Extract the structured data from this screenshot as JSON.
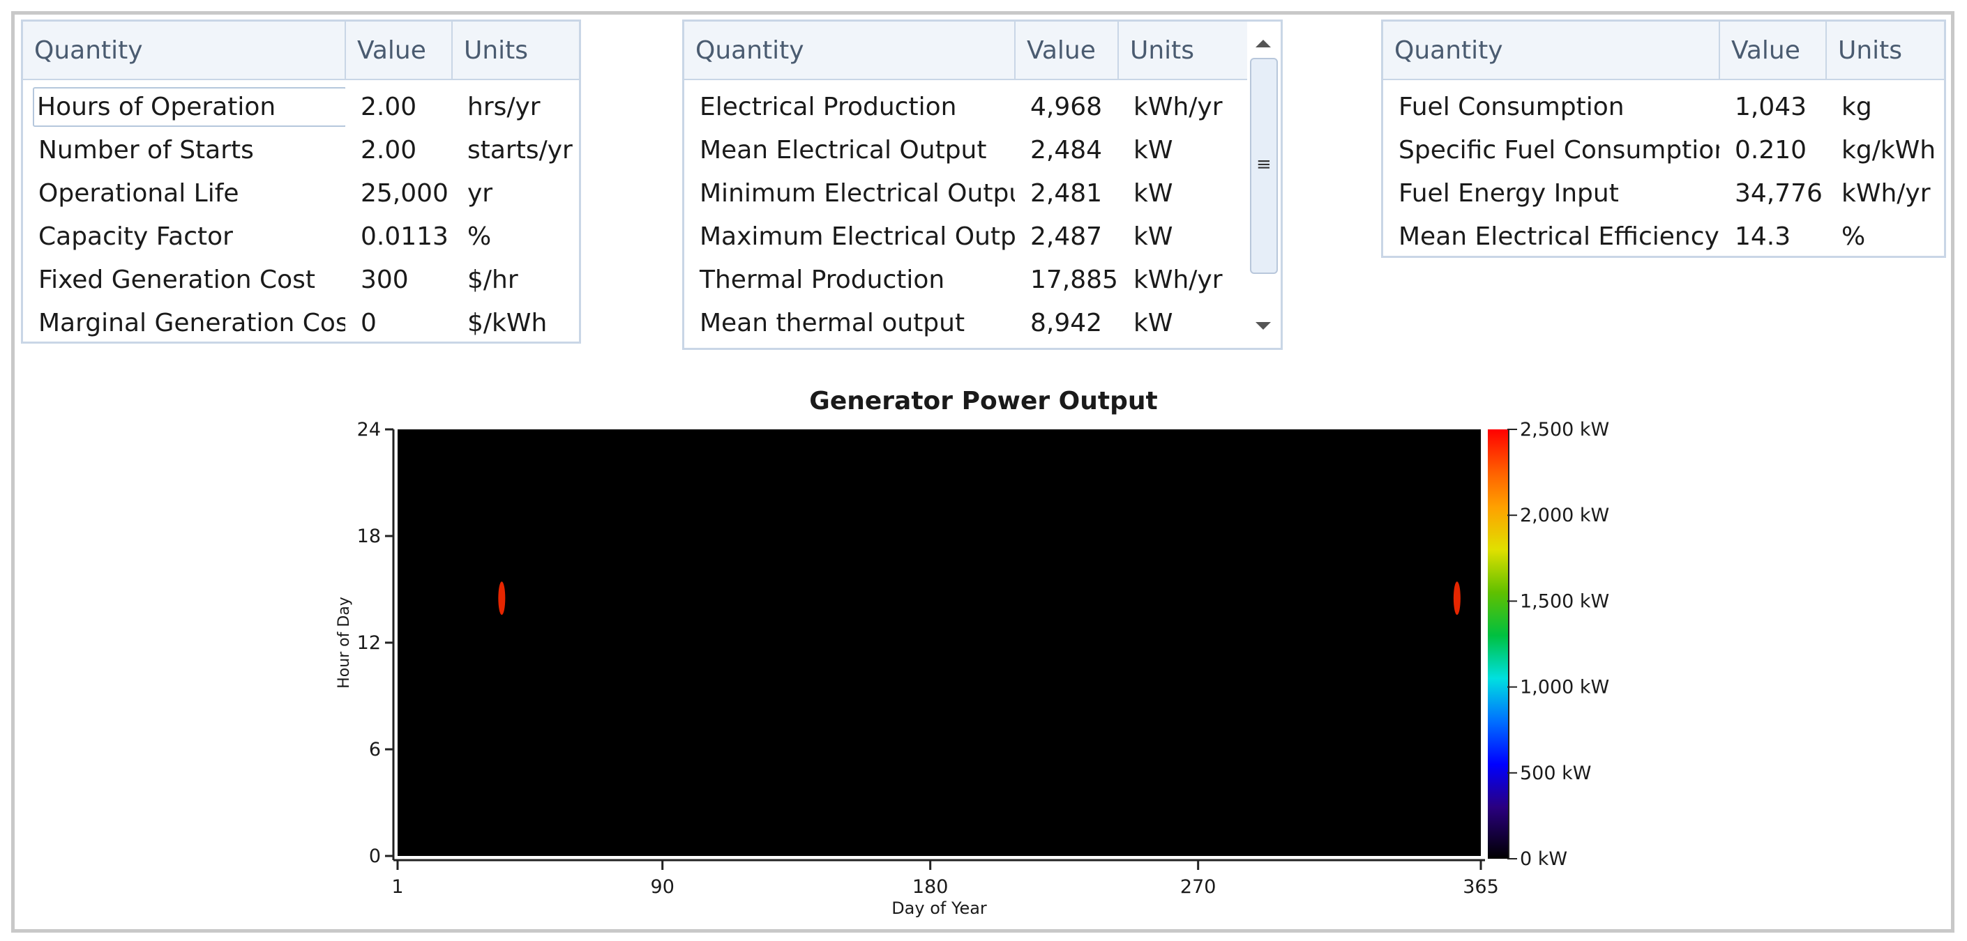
{
  "table_left": {
    "headers": [
      "Quantity",
      "Value",
      "Units"
    ],
    "rows": [
      [
        "Hours of Operation",
        "2.00",
        "hrs/yr"
      ],
      [
        "Number of Starts",
        "2.00",
        "starts/yr"
      ],
      [
        "Operational Life",
        "25,000",
        "yr"
      ],
      [
        "Capacity Factor",
        "0.0113",
        "%"
      ],
      [
        "Fixed Generation Cost",
        "300",
        "$/hr"
      ],
      [
        "Marginal Generation Cost",
        "0",
        "$/kWh"
      ]
    ]
  },
  "table_middle": {
    "headers": [
      "Quantity",
      "Value",
      "Units"
    ],
    "rows": [
      [
        "Electrical Production",
        "4,968",
        "kWh/yr"
      ],
      [
        "Mean Electrical Output",
        "2,484",
        "kW"
      ],
      [
        "Minimum Electrical Output",
        "2,481",
        "kW"
      ],
      [
        "Maximum Electrical Output",
        "2,487",
        "kW"
      ],
      [
        "Thermal Production",
        "17,885",
        "kWh/yr"
      ],
      [
        "Mean thermal output",
        "8,942",
        "kW"
      ]
    ],
    "scrollbar_grip": "≡"
  },
  "table_right": {
    "headers": [
      "Quantity",
      "Value",
      "Units"
    ],
    "rows": [
      [
        "Fuel Consumption",
        "1,043",
        "kg"
      ],
      [
        "Specific Fuel Consumption",
        "0.210",
        "kg/kWh"
      ],
      [
        "Fuel Energy Input",
        "34,776",
        "kWh/yr"
      ],
      [
        "Mean Electrical Efficiency",
        "14.3",
        "%"
      ]
    ]
  },
  "chart_data": {
    "type": "heatmap",
    "title": "Generator Power Output",
    "xlabel": "Day of Year",
    "ylabel": "Hour of Day",
    "x_ticks": [
      "1",
      "90",
      "180",
      "270",
      "365"
    ],
    "y_ticks": [
      "0",
      "6",
      "12",
      "18",
      "24"
    ],
    "xlim": [
      1,
      365
    ],
    "ylim": [
      0,
      24
    ],
    "colorbar_ticks": [
      "0 kW",
      "500 kW",
      "1,000 kW",
      "1,500 kW",
      "2,000 kW",
      "2,500 kW"
    ],
    "colorbar_range": [
      0,
      2500
    ],
    "background_value": 0,
    "points": [
      {
        "day": 36,
        "hour": 14.5,
        "value": 2484
      },
      {
        "day": 357,
        "hour": 14.5,
        "value": 2484
      }
    ],
    "colors": {
      "zero": "#000000",
      "high": "#ff2a00"
    }
  }
}
